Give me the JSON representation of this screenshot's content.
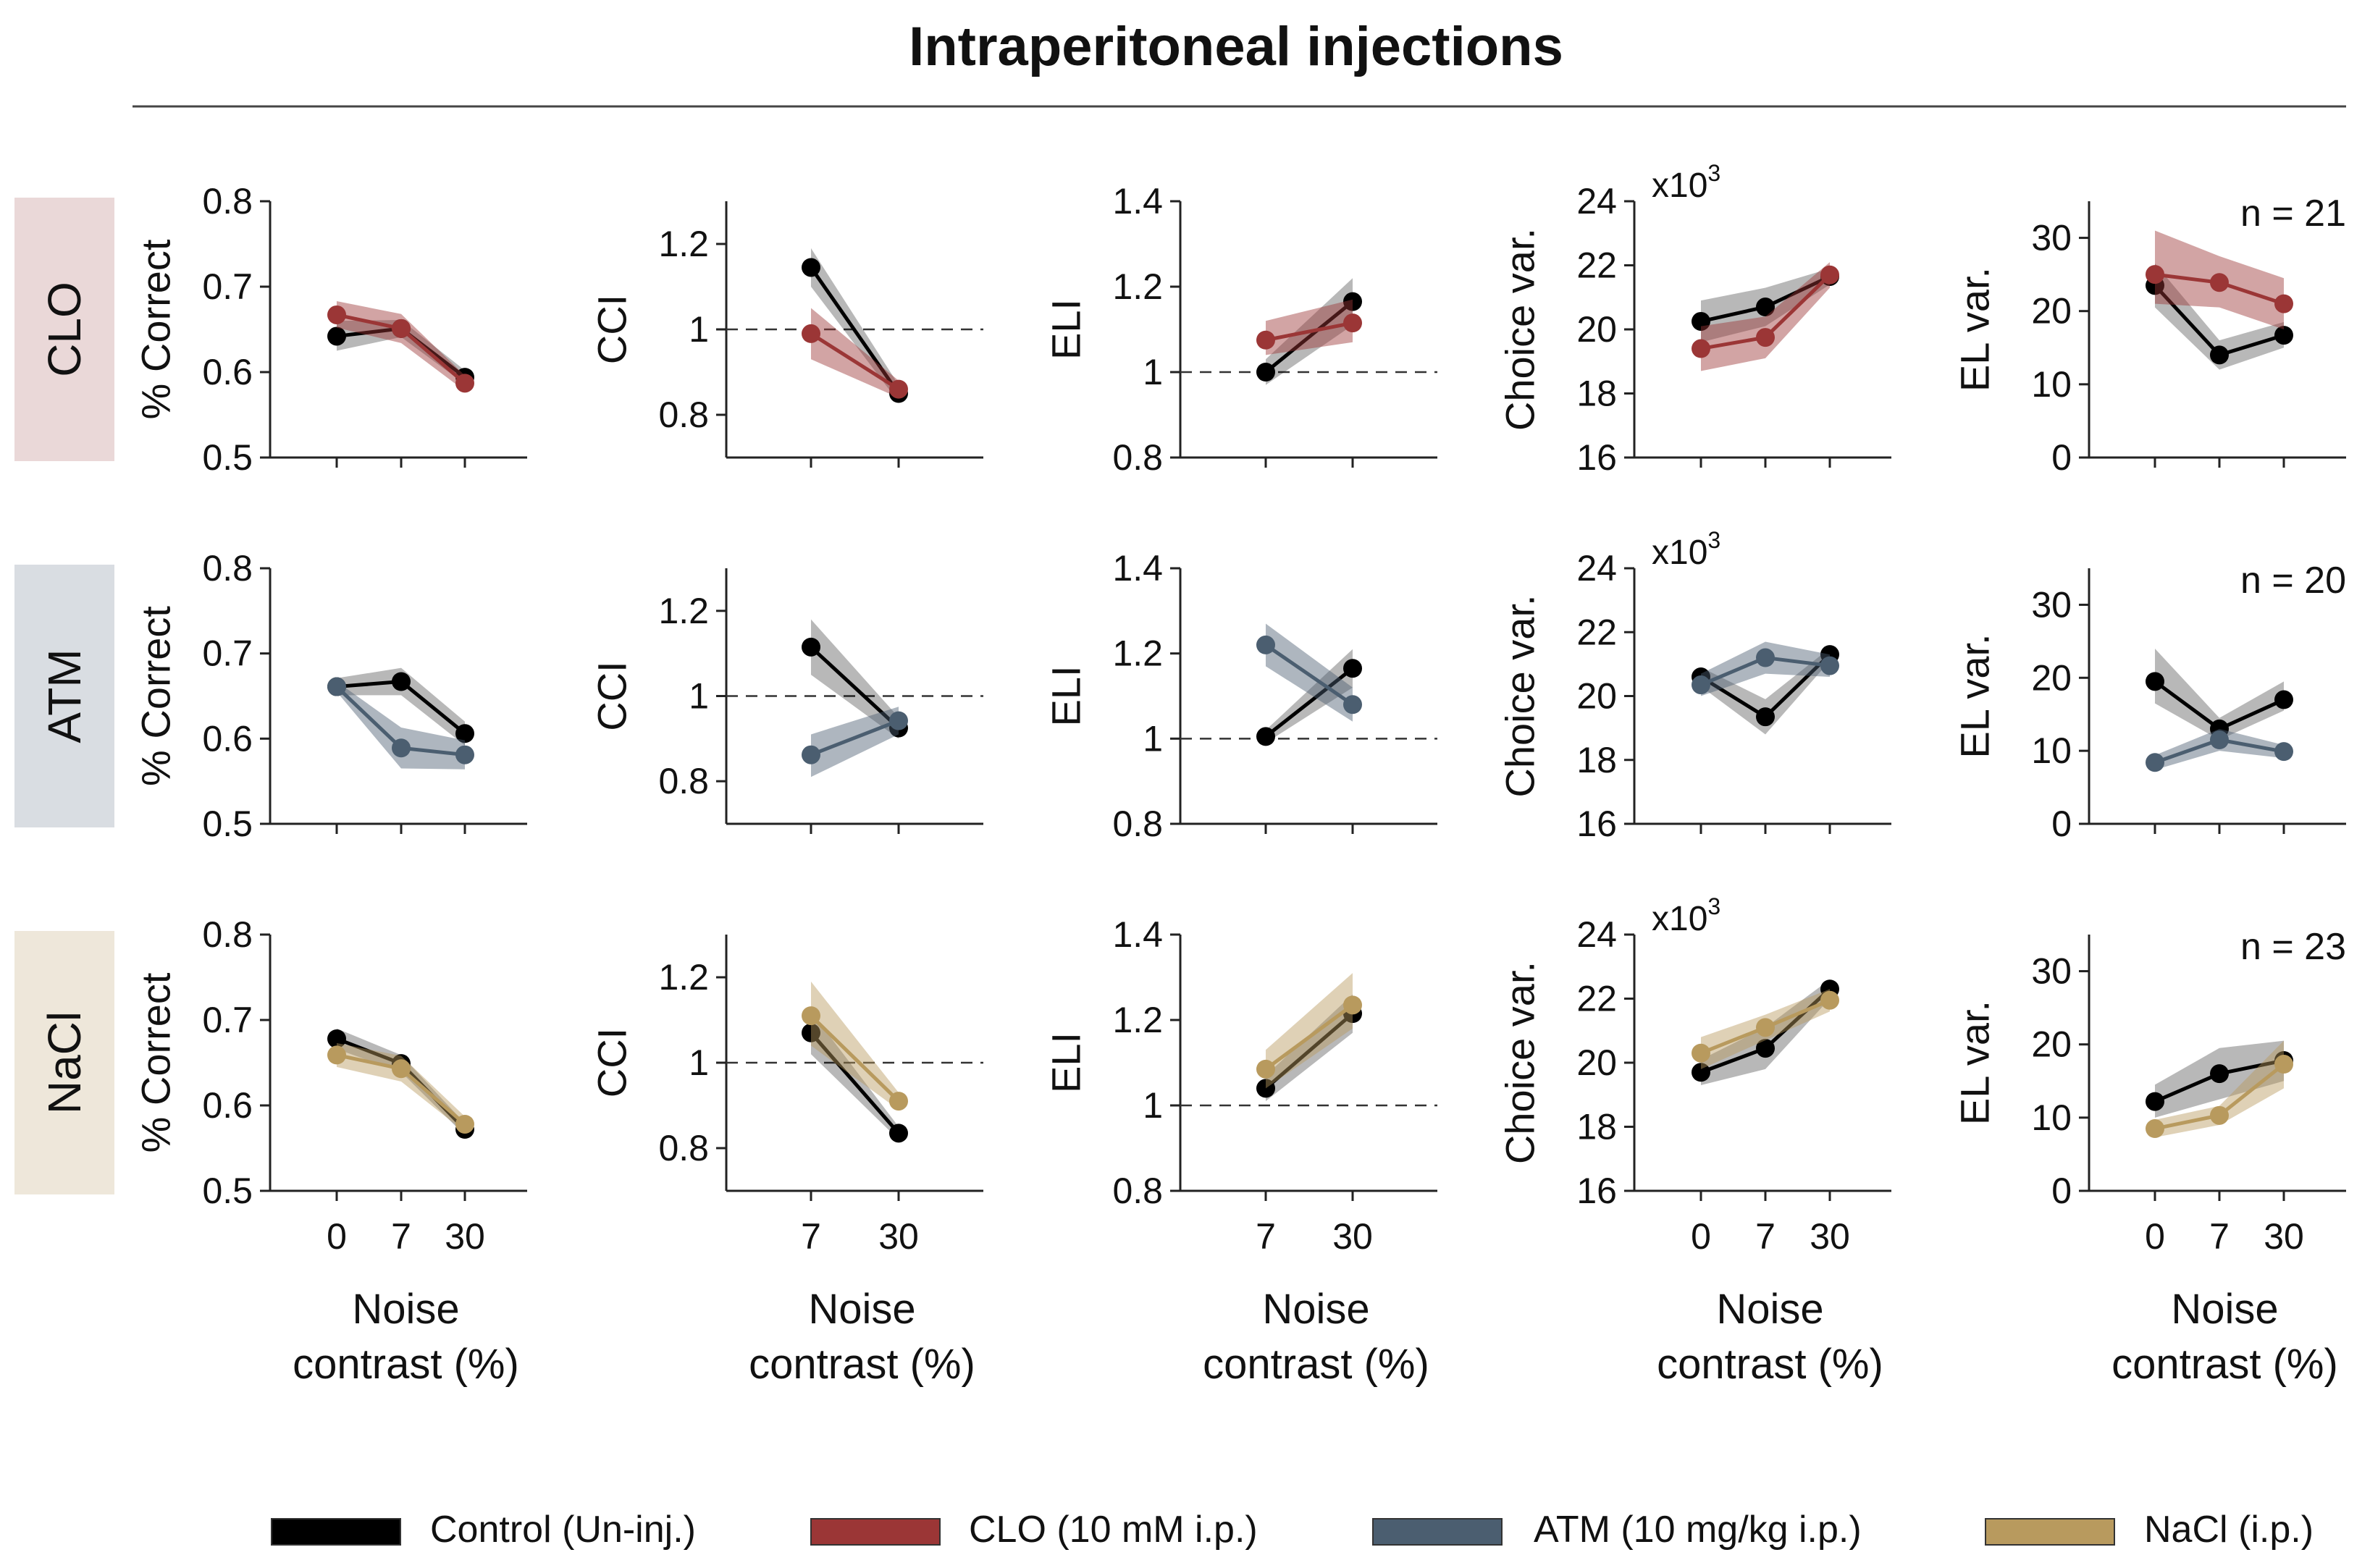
{
  "figure_title": "Intraperitoneal injections",
  "x_axis_label_line1": "Noise",
  "x_axis_label_line2": "contrast (%)",
  "colors": {
    "control": "#000000",
    "CLO": "#9b3636",
    "ATM": "#4b5e70",
    "NaCl": "#b89a5e",
    "row_bg_CLO": "#ead8d8",
    "row_bg_ATM": "#d9dde2",
    "row_bg_NaCl": "#eee7da"
  },
  "legend": [
    {
      "key": "control",
      "label": "Control (Un-inj.)"
    },
    {
      "key": "CLO",
      "label": "CLO (10 mM i.p.)"
    },
    {
      "key": "ATM",
      "label": "ATM (10 mg/kg i.p.)"
    },
    {
      "key": "NaCl",
      "label": "NaCl (i.p.)"
    }
  ],
  "rows": [
    {
      "label": "CLO",
      "n_label": "n = 21"
    },
    {
      "label": "ATM",
      "n_label": "n = 20"
    },
    {
      "label": "NaCl",
      "n_label": "n = 23"
    }
  ],
  "chart_data": [
    {
      "type": "line",
      "id": "correct",
      "ylabel": "% Correct",
      "x": [
        "0",
        "7",
        "30"
      ],
      "ylim": [
        0.5,
        0.8
      ],
      "yticks": [
        "0.5",
        "0.6",
        "0.7",
        "0.8"
      ],
      "ytick_values": [
        0.5,
        0.6,
        0.7,
        0.8
      ],
      "ref_line": null,
      "multiplier": null,
      "rows": [
        {
          "control": {
            "values": [
              0.642,
              0.651,
              0.594
            ],
            "lower": [
              0.625,
              0.641,
              0.586
            ],
            "upper": [
              0.66,
              0.661,
              0.602
            ]
          },
          "treatment": {
            "values": [
              0.667,
              0.651,
              0.587
            ],
            "lower": [
              0.652,
              0.634,
              0.578
            ],
            "upper": [
              0.683,
              0.668,
              0.596
            ]
          }
        },
        {
          "control": {
            "values": [
              0.661,
              0.667,
              0.606
            ],
            "lower": [
              0.651,
              0.651,
              0.592
            ],
            "upper": [
              0.671,
              0.683,
              0.62
            ]
          },
          "treatment": {
            "values": [
              0.661,
              0.589,
              0.581
            ],
            "lower": [
              0.655,
              0.565,
              0.564
            ],
            "upper": [
              0.667,
              0.613,
              0.598
            ]
          }
        },
        {
          "control": {
            "values": [
              0.678,
              0.649,
              0.572
            ],
            "lower": [
              0.666,
              0.639,
              0.565
            ],
            "upper": [
              0.69,
              0.659,
              0.579
            ]
          },
          "treatment": {
            "values": [
              0.659,
              0.643,
              0.578
            ],
            "lower": [
              0.645,
              0.628,
              0.569
            ],
            "upper": [
              0.673,
              0.658,
              0.587
            ]
          }
        }
      ]
    },
    {
      "type": "line",
      "id": "cci",
      "ylabel": "CCI",
      "x": [
        "7",
        "30"
      ],
      "ylim": [
        0.7,
        1.3
      ],
      "yticks": [
        "0.8",
        "1",
        "1.2"
      ],
      "ytick_values": [
        0.8,
        1.0,
        1.2
      ],
      "ref_line": 1.0,
      "multiplier": null,
      "rows": [
        {
          "control": {
            "values": [
              1.145,
              0.85
            ],
            "lower": [
              1.1,
              0.83
            ],
            "upper": [
              1.19,
              0.87
            ]
          },
          "treatment": {
            "values": [
              0.99,
              0.86
            ],
            "lower": [
              0.93,
              0.84
            ],
            "upper": [
              1.05,
              0.88
            ]
          }
        },
        {
          "control": {
            "values": [
              1.115,
              0.925
            ],
            "lower": [
              1.05,
              0.9
            ],
            "upper": [
              1.18,
              0.95
            ]
          },
          "treatment": {
            "values": [
              0.862,
              0.942
            ],
            "lower": [
              0.81,
              0.91
            ],
            "upper": [
              0.91,
              0.975
            ]
          }
        },
        {
          "control": {
            "values": [
              1.07,
              0.835
            ],
            "lower": [
              1.02,
              0.82
            ],
            "upper": [
              1.12,
              0.85
            ]
          },
          "treatment": {
            "values": [
              1.11,
              0.91
            ],
            "lower": [
              1.04,
              0.89
            ],
            "upper": [
              1.19,
              0.93
            ]
          }
        }
      ]
    },
    {
      "type": "line",
      "id": "eli",
      "ylabel": "ELI",
      "x": [
        "7",
        "30"
      ],
      "ylim": [
        0.8,
        1.4
      ],
      "yticks": [
        "0.8",
        "1",
        "1.2",
        "1.4"
      ],
      "ytick_values": [
        0.8,
        1.0,
        1.2,
        1.4
      ],
      "ref_line": 1.0,
      "multiplier": null,
      "rows": [
        {
          "control": {
            "values": [
              1.0,
              1.165
            ],
            "lower": [
              0.97,
              1.11
            ],
            "upper": [
              1.03,
              1.22
            ]
          },
          "treatment": {
            "values": [
              1.075,
              1.115
            ],
            "lower": [
              1.04,
              1.07
            ],
            "upper": [
              1.12,
              1.17
            ]
          }
        },
        {
          "control": {
            "values": [
              1.005,
              1.165
            ],
            "lower": [
              0.99,
              1.12
            ],
            "upper": [
              1.02,
              1.21
            ]
          },
          "treatment": {
            "values": [
              1.22,
              1.08
            ],
            "lower": [
              1.17,
              1.04
            ],
            "upper": [
              1.27,
              1.12
            ]
          }
        },
        {
          "control": {
            "values": [
              1.04,
              1.215
            ],
            "lower": [
              1.01,
              1.17
            ],
            "upper": [
              1.07,
              1.26
            ]
          },
          "treatment": {
            "values": [
              1.085,
              1.235
            ],
            "lower": [
              1.04,
              1.18
            ],
            "upper": [
              1.13,
              1.31
            ]
          }
        }
      ]
    },
    {
      "type": "line",
      "id": "choice_var",
      "ylabel": "Choice var.",
      "x": [
        "0",
        "7",
        "30"
      ],
      "ylim": [
        16,
        24
      ],
      "yticks": [
        "16",
        "18",
        "20",
        "22",
        "24"
      ],
      "ytick_values": [
        16,
        18,
        20,
        22,
        24
      ],
      "ref_line": null,
      "multiplier": "x10",
      "multiplier_exp": "3",
      "rows": [
        {
          "control": {
            "values": [
              20.25,
              20.7,
              21.65
            ],
            "lower": [
              19.6,
              20.1,
              21.4
            ],
            "upper": [
              20.9,
              21.3,
              21.9
            ]
          },
          "treatment": {
            "values": [
              19.4,
              19.75,
              21.7
            ],
            "lower": [
              18.7,
              19.1,
              21.3
            ],
            "upper": [
              20.1,
              20.4,
              22.1
            ]
          }
        },
        {
          "control": {
            "values": [
              20.6,
              19.35,
              21.3
            ],
            "lower": [
              20.3,
              18.8,
              21.1
            ],
            "upper": [
              20.9,
              19.9,
              21.5
            ]
          },
          "treatment": {
            "values": [
              20.35,
              21.2,
              20.95
            ],
            "lower": [
              20.0,
              20.7,
              20.6
            ],
            "upper": [
              20.7,
              21.7,
              21.3
            ]
          }
        },
        {
          "control": {
            "values": [
              19.7,
              20.45,
              22.3
            ],
            "lower": [
              19.3,
              19.8,
              22.0
            ],
            "upper": [
              20.1,
              21.1,
              22.6
            ]
          },
          "treatment": {
            "values": [
              20.3,
              21.1,
              21.95
            ],
            "lower": [
              19.8,
              20.7,
              21.6
            ],
            "upper": [
              20.8,
              21.5,
              22.3
            ]
          }
        }
      ]
    },
    {
      "type": "line",
      "id": "el_var",
      "ylabel": "EL var.",
      "x": [
        "0",
        "7",
        "30"
      ],
      "ylim": [
        0,
        35
      ],
      "yticks": [
        "0",
        "10",
        "20",
        "30"
      ],
      "ytick_values": [
        0,
        10,
        20,
        30
      ],
      "ref_line": null,
      "multiplier": null,
      "rows": [
        {
          "control": {
            "values": [
              23.5,
              14.0,
              16.7
            ],
            "lower": [
              20.5,
              12.0,
              15.0
            ],
            "upper": [
              26.5,
              16.0,
              18.5
            ]
          },
          "treatment": {
            "values": [
              25.0,
              23.9,
              21.0
            ],
            "lower": [
              21.0,
              20.5,
              17.5
            ],
            "upper": [
              31.0,
              27.5,
              24.5
            ]
          }
        },
        {
          "control": {
            "values": [
              19.5,
              13.0,
              17.0
            ],
            "lower": [
              16.5,
              11.5,
              15.5
            ],
            "upper": [
              24.0,
              14.5,
              19.5
            ]
          },
          "treatment": {
            "values": [
              8.4,
              11.5,
              9.9
            ],
            "lower": [
              7.4,
              10.0,
              9.0
            ],
            "upper": [
              9.4,
              13.0,
              10.8
            ]
          }
        },
        {
          "control": {
            "values": [
              12.2,
              16.0,
              17.8
            ],
            "lower": [
              10.0,
              12.5,
              15.0
            ],
            "upper": [
              14.5,
              19.5,
              20.5
            ]
          },
          "treatment": {
            "values": [
              8.5,
              10.3,
              17.3
            ],
            "lower": [
              7.3,
              9.0,
              14.0
            ],
            "upper": [
              9.7,
              11.6,
              20.5
            ]
          }
        }
      ]
    }
  ]
}
